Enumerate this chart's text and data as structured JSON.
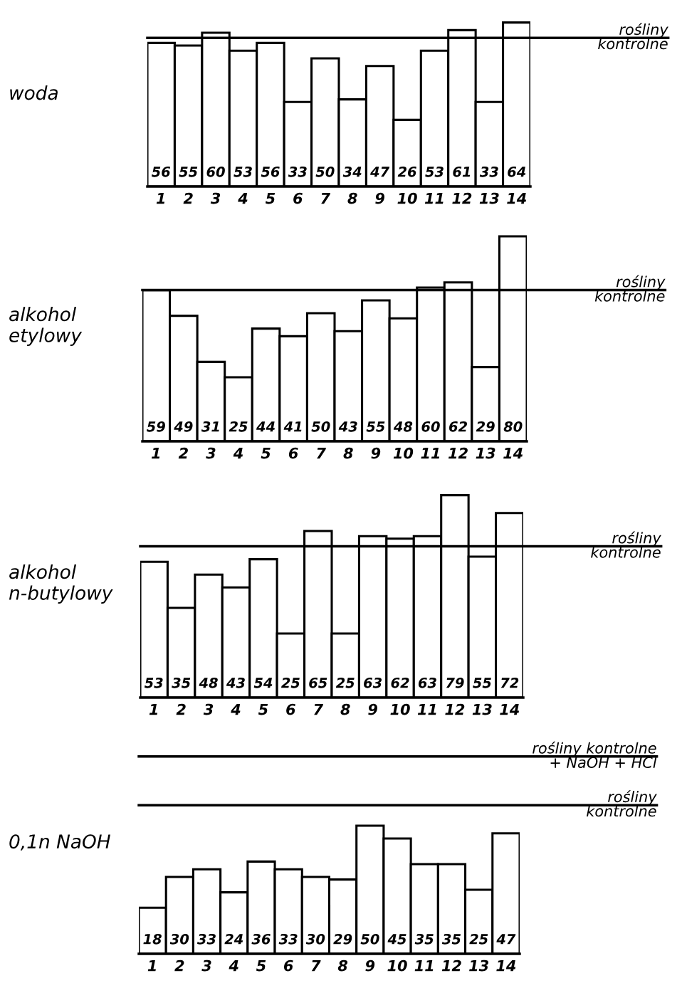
{
  "chart_data": [
    {
      "type": "bar",
      "ylabel": "woda",
      "categories": [
        "1",
        "2",
        "3",
        "4",
        "5",
        "6",
        "7",
        "8",
        "9",
        "10",
        "11",
        "12",
        "13",
        "14"
      ],
      "values": [
        56,
        55,
        60,
        53,
        56,
        33,
        50,
        34,
        47,
        26,
        53,
        61,
        33,
        64
      ],
      "color": "#ffffff",
      "tick_labels": "x",
      "data_labels": true,
      "grid": false,
      "legend": false,
      "ref_lines": [
        {
          "axis": "y",
          "value": 58,
          "label": "rośliny\nkontrolne"
        }
      ]
    },
    {
      "type": "bar",
      "ylabel": "alkohol\netylowy",
      "categories": [
        "1",
        "2",
        "3",
        "4",
        "5",
        "6",
        "7",
        "8",
        "9",
        "10",
        "11",
        "12",
        "13",
        "14"
      ],
      "values": [
        59,
        49,
        31,
        25,
        44,
        41,
        50,
        43,
        55,
        48,
        60,
        62,
        29,
        80
      ],
      "color": "#ffffff",
      "tick_labels": "x",
      "data_labels": true,
      "grid": false,
      "legend": false,
      "ref_lines": [
        {
          "axis": "y",
          "value": 59,
          "label": "rośliny\nkontrolne"
        }
      ]
    },
    {
      "type": "bar",
      "ylabel": "alkohol\nn-butylowy",
      "categories": [
        "1",
        "2",
        "3",
        "4",
        "5",
        "6",
        "7",
        "8",
        "9",
        "10",
        "11",
        "12",
        "13",
        "14"
      ],
      "values": [
        53,
        35,
        48,
        43,
        54,
        25,
        65,
        25,
        63,
        62,
        63,
        79,
        55,
        72
      ],
      "color": "#ffffff",
      "tick_labels": "x",
      "data_labels": true,
      "grid": false,
      "legend": false,
      "ref_lines": [
        {
          "axis": "y",
          "value": 59,
          "label": "rośliny\nkontrolne"
        }
      ]
    },
    {
      "type": "bar",
      "ylabel": "0,1n NaOH",
      "categories": [
        "1",
        "2",
        "3",
        "4",
        "5",
        "6",
        "7",
        "8",
        "9",
        "10",
        "11",
        "12",
        "13",
        "14"
      ],
      "values": [
        18,
        30,
        33,
        24,
        36,
        33,
        30,
        29,
        50,
        45,
        35,
        35,
        25,
        47
      ],
      "color": "#ffffff",
      "tick_labels": "x",
      "data_labels": true,
      "grid": false,
      "legend": false,
      "ref_lines": [
        {
          "axis": "y",
          "value": 77,
          "label": "rośliny kontrolne\n+ NaOH + HCl"
        },
        {
          "axis": "y",
          "value": 58,
          "label": "rośliny\nkontrolne"
        }
      ]
    }
  ]
}
